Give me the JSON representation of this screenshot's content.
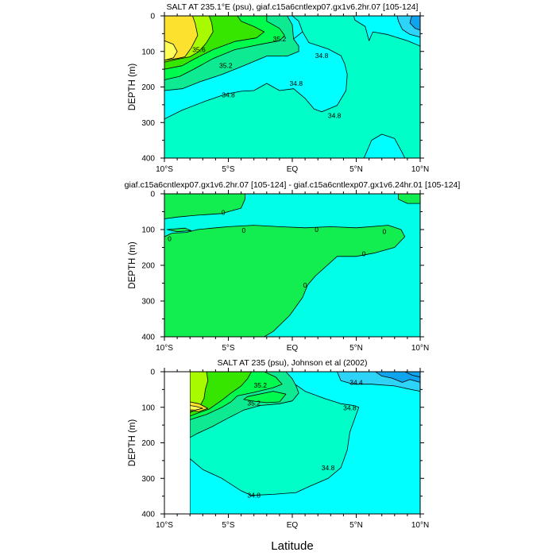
{
  "x_axis_label": "Latitude",
  "chart_data": [
    {
      "type": "contour",
      "title": "SALT AT 235.1°E (psu), giaf.c15a6cntlexp07.gx1v6.2hr.07 [105-124]",
      "xlabel": "",
      "ylabel": "DEPTH (m)",
      "xlim": [
        -10,
        10
      ],
      "ylim": [
        400,
        0
      ],
      "x_ticks": [
        "10°S",
        "5°S",
        "EQ",
        "5°N",
        "10°N"
      ],
      "y_ticks": [
        "0",
        "100",
        "200",
        "300",
        "400"
      ],
      "contour_levels": [
        34.4,
        34.6,
        34.8,
        35.0,
        35.2,
        35.4,
        35.6,
        35.8
      ],
      "contour_labels": [
        {
          "text": "35.6",
          "lat": -7.3,
          "depth": 95
        },
        {
          "text": "35.2",
          "lat": -1.0,
          "depth": 65
        },
        {
          "text": "35.2",
          "lat": -5.2,
          "depth": 140
        },
        {
          "text": "34.8",
          "lat": 2.3,
          "depth": 112
        },
        {
          "text": "34.8",
          "lat": 0.3,
          "depth": 190
        },
        {
          "text": "34.8",
          "lat": -5.0,
          "depth": 222
        },
        {
          "text": "34.8",
          "lat": 3.3,
          "depth": 280
        }
      ]
    },
    {
      "type": "contour",
      "title": "giaf.c15a6cntlexp07.gx1v6.2hr.07 [105-124] - giaf.c15a6cntlexp07.gx1v6.24hr.01 [105-124]",
      "xlabel": "",
      "ylabel": "DEPTH (m)",
      "xlim": [
        -10,
        10
      ],
      "ylim": [
        400,
        0
      ],
      "x_ticks": [
        "10°S",
        "5°S",
        "EQ",
        "5°N",
        "10°N"
      ],
      "y_ticks": [
        "0",
        "100",
        "200",
        "300",
        "400"
      ],
      "contour_levels": [
        0
      ],
      "contour_labels": [
        {
          "text": "0",
          "lat": -5.4,
          "depth": 52
        },
        {
          "text": "0",
          "lat": -9.6,
          "depth": 125
        },
        {
          "text": "0",
          "lat": -3.8,
          "depth": 102
        },
        {
          "text": "0",
          "lat": 1.9,
          "depth": 100
        },
        {
          "text": "0",
          "lat": 7.2,
          "depth": 105
        },
        {
          "text": "0",
          "lat": 5.6,
          "depth": 168
        },
        {
          "text": "0",
          "lat": 1.0,
          "depth": 255
        }
      ]
    },
    {
      "type": "contour",
      "title": "SALT AT 235 (psu), Johnson et al (2002)",
      "xlabel": "",
      "ylabel": "DEPTH (m)",
      "xlim": [
        -10,
        10
      ],
      "ylim": [
        400,
        0
      ],
      "x_ticks": [
        "10°S",
        "5°S",
        "EQ",
        "5°N",
        "10°N"
      ],
      "y_ticks": [
        "0",
        "100",
        "200",
        "300",
        "400"
      ],
      "data_extent_lat": [
        -8,
        10
      ],
      "contour_levels": [
        34.2,
        34.4,
        34.6,
        34.8,
        35.0,
        35.2,
        35.4,
        35.6
      ],
      "contour_labels": [
        {
          "text": "35.2",
          "lat": -2.5,
          "depth": 38
        },
        {
          "text": "35.2",
          "lat": -3.0,
          "depth": 88
        },
        {
          "text": "34.4",
          "lat": 5.0,
          "depth": 30
        },
        {
          "text": "34.8",
          "lat": 4.5,
          "depth": 102
        },
        {
          "text": "34.8",
          "lat": 2.8,
          "depth": 270
        },
        {
          "text": "34.8",
          "lat": -3.0,
          "depth": 348
        }
      ]
    }
  ],
  "colors": {
    "frame": "#000000",
    "contour_line": "#000000",
    "background": "#ffffff",
    "fill_levels": {
      "34.2": "#0fa5ee",
      "34.4": "#2ed3f8",
      "34.6": "#00ffff",
      "34.8": "#00fec8",
      "35.0": "#0dea92",
      "35.2": "#00fa4e",
      "35.4": "#36e500",
      "35.6": "#a7fa00",
      "35.8": "#fde12f",
      "36.0": "#fffd58",
      "diff_high": "#12ed50",
      "diff_low": "#00ffe6"
    }
  }
}
